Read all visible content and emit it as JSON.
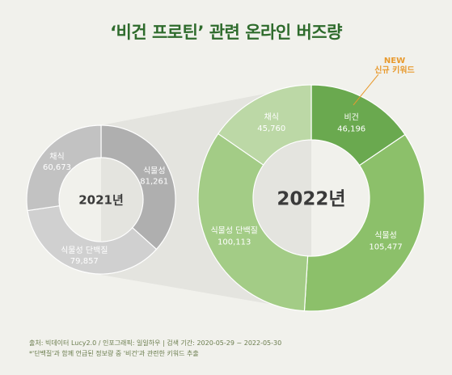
{
  "title": "‘비건 프로틴’ 관련 온라인 버즈량",
  "chart_data": [
    {
      "type": "donut",
      "center_label": "2021년",
      "segments": [
        {
          "label": "식물성",
          "value": 81261,
          "display": "81,261",
          "color": "#afafaf"
        },
        {
          "label": "식물성 단백질",
          "value": 79857,
          "display": "79,857",
          "color": "#d0d0d0"
        },
        {
          "label": "채식",
          "value": 60673,
          "display": "60,673",
          "color": "#c2c2c2"
        }
      ]
    },
    {
      "type": "donut",
      "center_label": "2022년",
      "segments": [
        {
          "label": "비건",
          "value": 46196,
          "display": "46,196",
          "color": "#6aa94f"
        },
        {
          "label": "식물성",
          "value": 105477,
          "display": "105,477",
          "color": "#8cc06a"
        },
        {
          "label": "식물성 단백질",
          "value": 100113,
          "display": "100,113",
          "color": "#a3cc86"
        },
        {
          "label": "채식",
          "value": 45760,
          "display": "45,760",
          "color": "#bcd8a6"
        }
      ]
    }
  ],
  "annotation": {
    "line1": "NEW",
    "line2": "신규 키워드",
    "color": "#e89a2e"
  },
  "footer": {
    "line1": "출처: 빅데이터 Lucy2.0 / 인포그래픽: 일일하우 | 검색 기간: 2020-05-29 ~ 2022-05-30",
    "line2": "*'단백질'과 함께 언급된 정보량 중 '비건'과 관련한 키워드 추출"
  }
}
